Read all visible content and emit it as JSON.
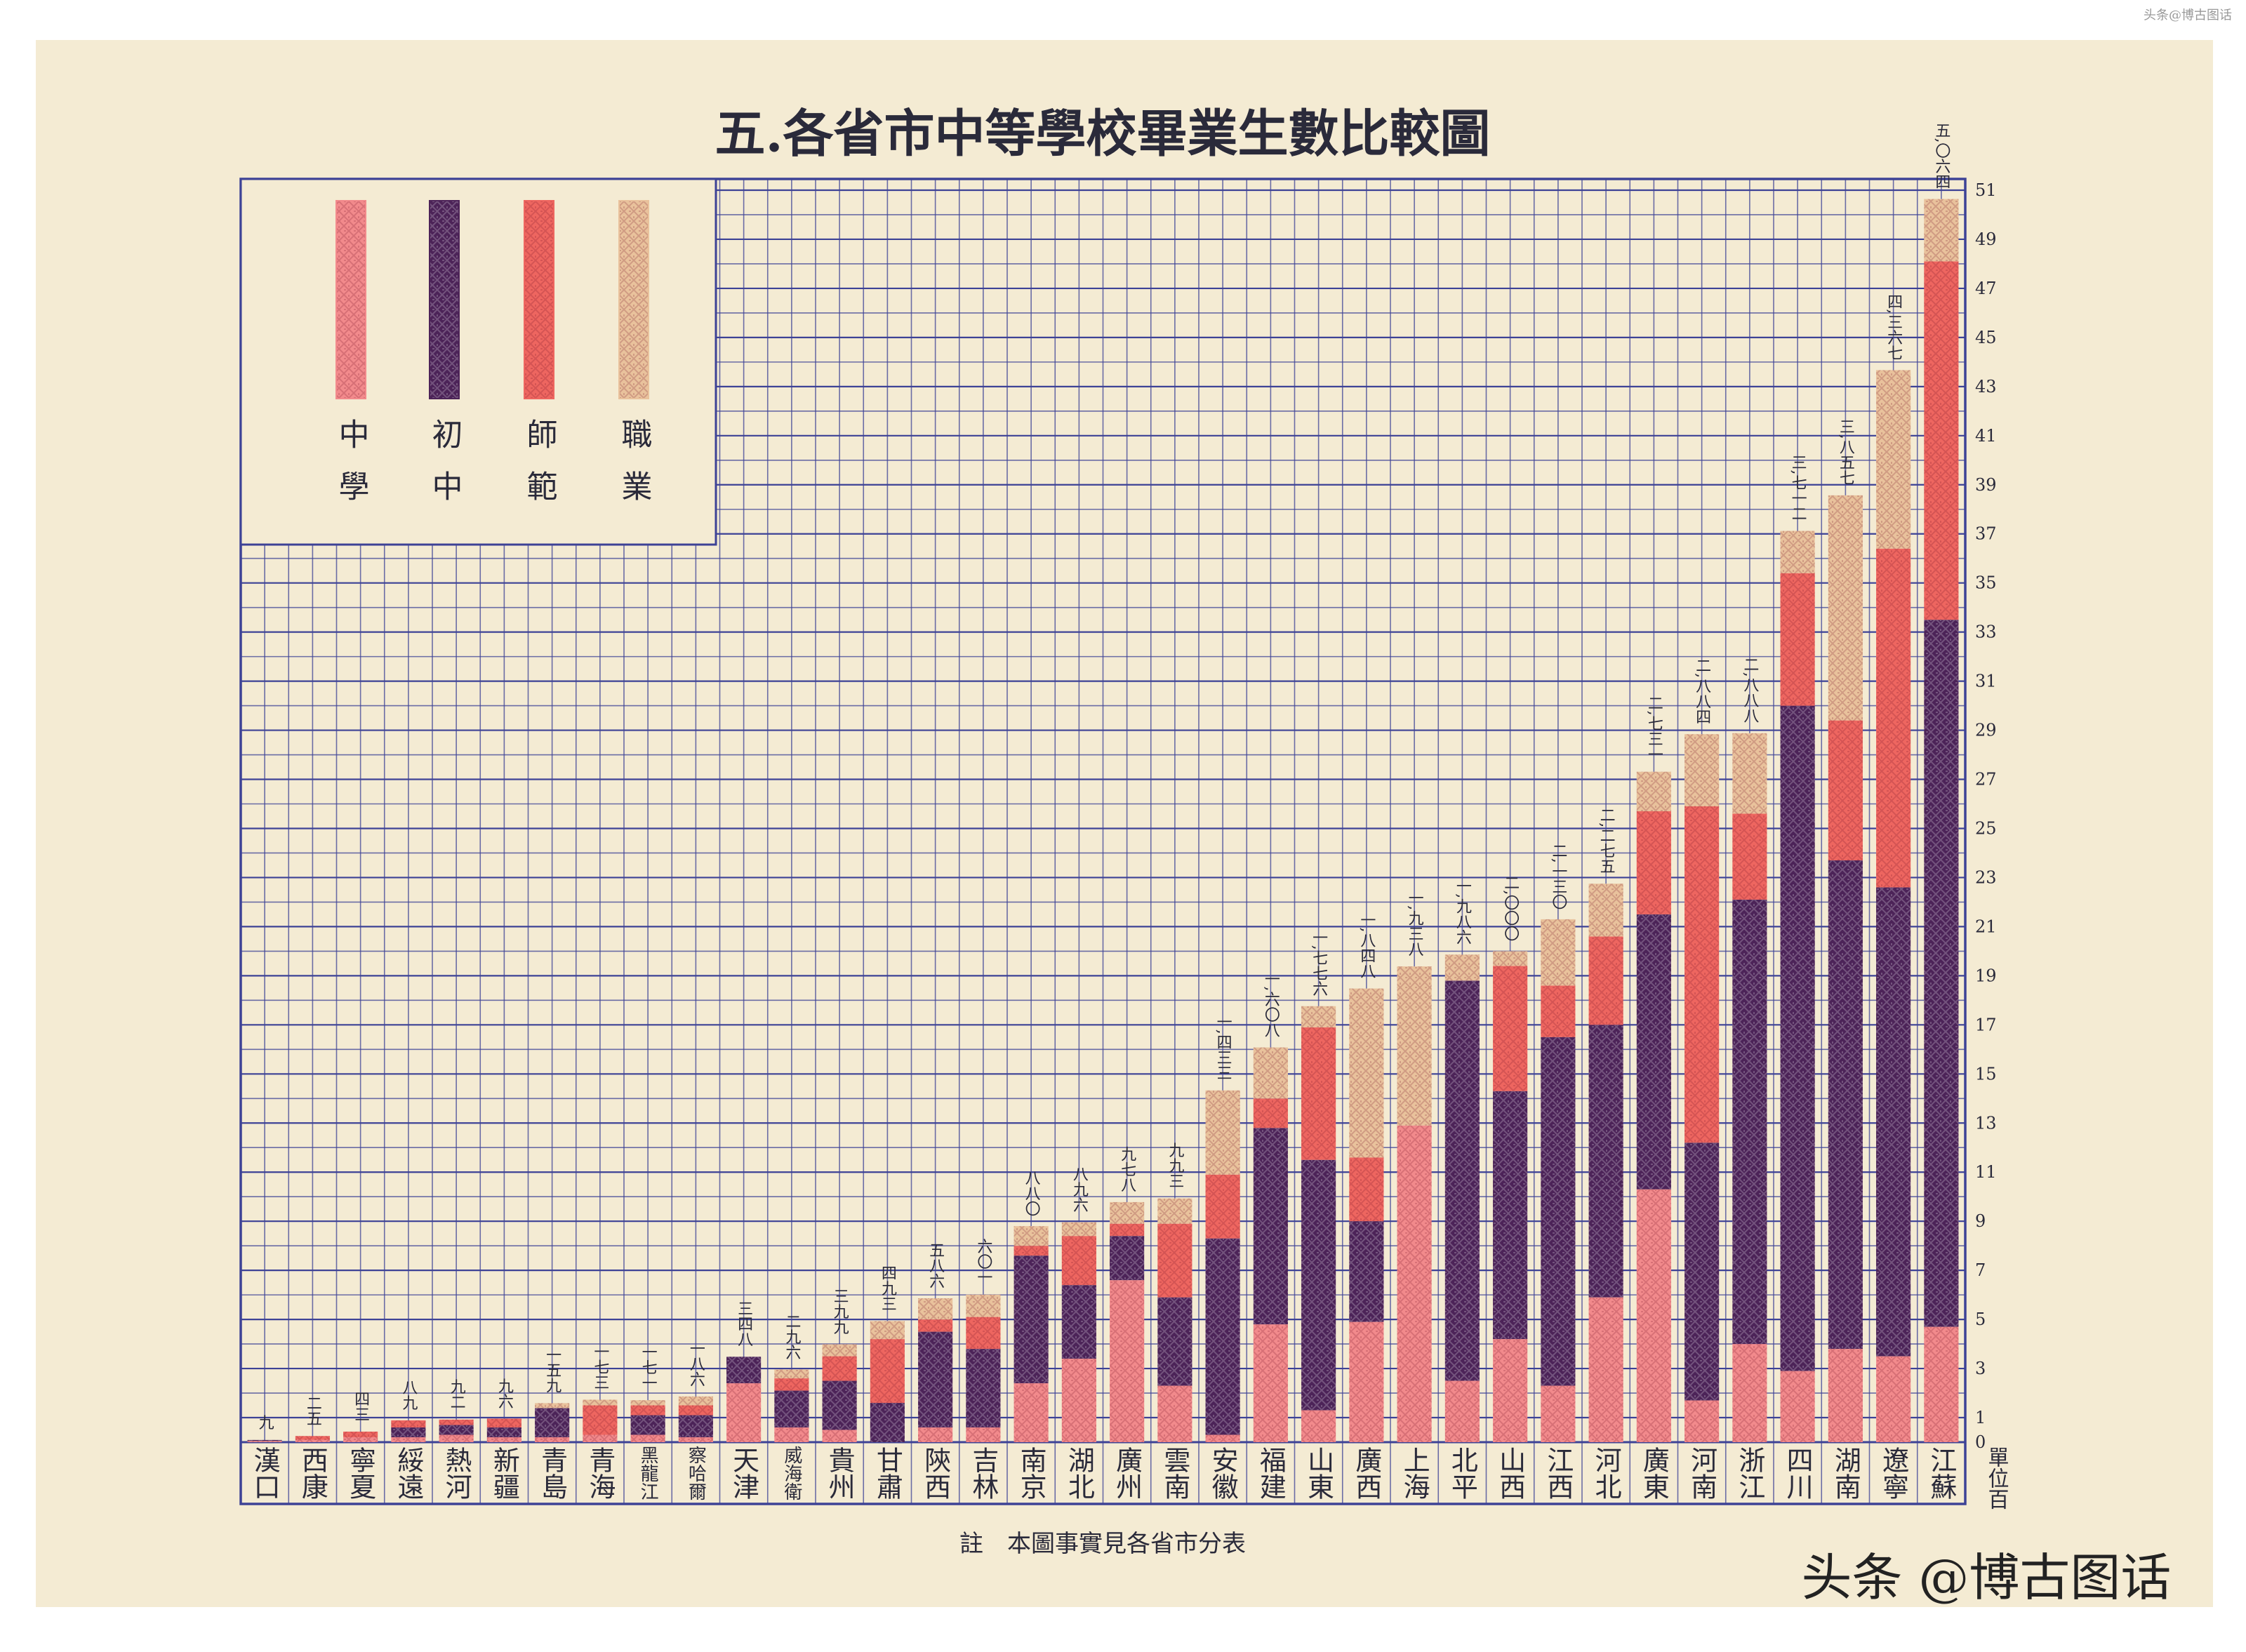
{
  "chart_data": {
    "type": "bar",
    "stacked": true,
    "title": "五.各省市中等學校畢業生數比較圖",
    "categories": [
      "漢口",
      "西康",
      "寧夏",
      "綏遠",
      "熱河",
      "新疆",
      "青島",
      "青海",
      "黑龍江",
      "察哈爾",
      "天津",
      "威海衛",
      "貴州",
      "甘肅",
      "陝西",
      "吉林",
      "南京",
      "湖北",
      "廣州",
      "雲南",
      "安徽",
      "福建",
      "山東",
      "廣西",
      "上海",
      "北平",
      "山西",
      "江西",
      "河北",
      "廣東",
      "河南",
      "浙江",
      "四川",
      "湖南",
      "遼寧",
      "江蘇"
    ],
    "series": [
      {
        "name": "中學",
        "color": "#f28a8c",
        "values": [
          0.05,
          0.1,
          0.2,
          0.2,
          0.3,
          0.2,
          0.2,
          0.3,
          0.3,
          0.2,
          2.4,
          0.6,
          0.5,
          0,
          0.6,
          0.6,
          2.4,
          3.4,
          6.6,
          2.3,
          0.3,
          4.8,
          1.3,
          4.9,
          12.9,
          2.5,
          4.2,
          2.3,
          5.9,
          10.3,
          1.7,
          4.0,
          2.9,
          3.8,
          3.5,
          4.7
        ]
      },
      {
        "name": "初中",
        "color": "#4c2358",
        "values": [
          0.04,
          0,
          0,
          0.4,
          0.4,
          0.4,
          1.19,
          0,
          0.8,
          0.9,
          1.08,
          1.5,
          2.0,
          1.6,
          3.9,
          3.2,
          5.2,
          3.0,
          1.8,
          3.6,
          8.0,
          8.0,
          10.2,
          4.1,
          0,
          16.3,
          10.1,
          14.2,
          11.1,
          11.2,
          10.5,
          18.1,
          27.1,
          19.9,
          19.1,
          28.8
        ]
      },
      {
        "name": "師範",
        "color": "#ee6660",
        "values": [
          0,
          0.15,
          0.23,
          0.29,
          0.22,
          0.36,
          0,
          1.2,
          0.4,
          0.4,
          0,
          0.5,
          1.0,
          2.6,
          0.5,
          1.3,
          0.4,
          2.0,
          0.5,
          3.0,
          2.6,
          1.2,
          5.4,
          2.6,
          0,
          0,
          5.1,
          2.1,
          3.6,
          4.2,
          13.7,
          3.5,
          5.4,
          5.7,
          13.8,
          14.6
        ]
      },
      {
        "name": "職業",
        "color": "#e9c29c",
        "values": [
          0,
          0,
          0,
          0,
          0,
          0,
          0.2,
          0.23,
          0.21,
          0.36,
          0,
          0.36,
          0.49,
          0.73,
          0.86,
          0.91,
          0.8,
          0.56,
          0.88,
          1.03,
          3.43,
          2.08,
          0.86,
          6.88,
          6.48,
          1.06,
          0.6,
          2.7,
          2.15,
          1.61,
          2.94,
          3.28,
          1.72,
          9.17,
          7.27,
          2.54
        ]
      }
    ],
    "totals": [
      0.09,
      0.25,
      0.43,
      0.89,
      0.92,
      0.96,
      1.59,
      1.73,
      1.71,
      1.86,
      3.48,
      2.96,
      3.99,
      4.93,
      5.86,
      6.01,
      8.8,
      8.96,
      9.78,
      9.93,
      14.33,
      16.08,
      17.76,
      18.48,
      19.38,
      19.86,
      20.0,
      21.3,
      22.75,
      27.31,
      28.84,
      28.88,
      37.12,
      38.57,
      43.67,
      50.64
    ],
    "total_labels": [
      "九",
      "二五",
      "四三",
      "八九",
      "九二",
      "九六",
      "一五九",
      "一七三",
      "一七一",
      "一八六",
      "三四八",
      "二九六",
      "三九九",
      "四九三",
      "五八六",
      "六〇一",
      "八八〇",
      "八九六",
      "九七八",
      "九九三",
      "一,四三三",
      "一,六〇八",
      "一,七七六",
      "一,八四八",
      "一,九三八",
      "一,九八六",
      "二,〇〇〇",
      "二,一三〇",
      "二,二七五",
      "二,七三一",
      "二,八八四",
      "二,八八八",
      "三,七一二",
      "三,八五七",
      "四,三六七",
      "五,〇六四"
    ],
    "ylim": [
      0,
      51
    ],
    "yticks": [
      0,
      1,
      3,
      5,
      7,
      9,
      11,
      13,
      15,
      17,
      19,
      21,
      23,
      25,
      27,
      29,
      31,
      33,
      35,
      37,
      39,
      41,
      43,
      45,
      47,
      49,
      51
    ],
    "unit": "單位百",
    "note": "註　本圖事實見各省市分表",
    "grid": true
  },
  "watermark": "头条 @博古图话",
  "corner_watermark": "头条@博古图话"
}
